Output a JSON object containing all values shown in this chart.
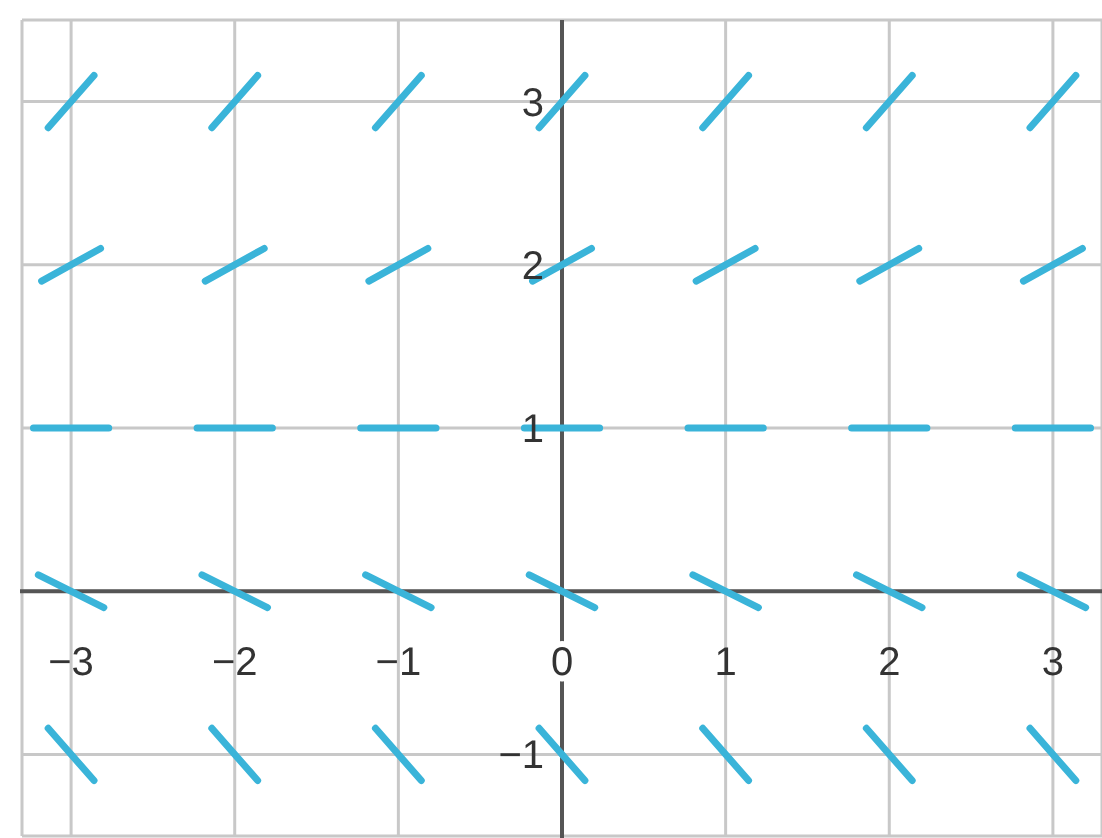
{
  "chart_data": {
    "type": "line",
    "xlim": [
      -3.3,
      3.3
    ],
    "ylim": [
      -1.5,
      3.5
    ],
    "xticks": [
      -3,
      -2,
      -1,
      0,
      1,
      2,
      3
    ],
    "yticks": [
      -1,
      {
        "value": 0,
        "label": null
      },
      1,
      2,
      3
    ],
    "grid": true,
    "marker": "none",
    "line_style": "solid",
    "series": [
      {
        "color": "#3ab4d9",
        "x": [
          -3.14,
          -2.86,
          -2.5,
          -2.14,
          -1.86,
          -1.5,
          -1.14,
          -0.86,
          -0.5,
          -0.14,
          0.14,
          0.5,
          0.86,
          1.14,
          1.5,
          1.86,
          2.14,
          2.5,
          2.86,
          3.14
        ],
        "values": [
          2.84,
          3.16,
          null,
          2.84,
          3.16,
          null,
          2.84,
          3.16,
          null,
          2.84,
          3.16,
          null,
          2.84,
          3.16,
          null,
          2.84,
          3.16,
          null,
          2.84,
          3.16
        ]
      },
      {
        "color": "#3ab4d9",
        "x": [
          -3.18,
          -2.82,
          -2.5,
          -2.18,
          -1.82,
          -1.5,
          -1.18,
          -0.82,
          -0.5,
          -0.18,
          0.18,
          0.5,
          0.82,
          1.18,
          1.5,
          1.82,
          2.18,
          2.5,
          2.82,
          3.18
        ],
        "values": [
          1.9,
          2.1,
          null,
          1.9,
          2.1,
          null,
          1.9,
          2.1,
          null,
          1.9,
          2.1,
          null,
          1.9,
          2.1,
          null,
          1.9,
          2.1,
          null,
          1.9,
          2.1
        ]
      },
      {
        "color": "#3ab4d9",
        "x": [
          -3.23,
          -2.77,
          -2.5,
          -2.23,
          -1.77,
          -1.5,
          -1.23,
          -0.77,
          -0.5,
          -0.23,
          0.23,
          0.5,
          0.77,
          1.23,
          1.5,
          1.77,
          2.23,
          2.5,
          2.77,
          3.23
        ],
        "values": [
          1,
          1,
          null,
          1,
          1,
          null,
          1,
          1,
          null,
          1,
          1,
          null,
          1,
          1,
          null,
          1,
          1,
          null,
          1,
          1
        ]
      },
      {
        "color": "#3ab4d9",
        "x": [
          -3.2,
          -2.8,
          -2.5,
          -2.2,
          -1.8,
          -1.5,
          -1.2,
          -0.8,
          -0.5,
          -0.2,
          0.2,
          0.5,
          0.8,
          1.2,
          1.5,
          1.8,
          2.2,
          2.5,
          2.8,
          3.2
        ],
        "values": [
          0.1,
          -0.1,
          null,
          0.1,
          -0.1,
          null,
          0.1,
          -0.1,
          null,
          0.1,
          -0.1,
          null,
          0.1,
          -0.1,
          null,
          0.1,
          -0.1,
          null,
          0.1,
          -0.1
        ]
      },
      {
        "color": "#3ab4d9",
        "x": [
          -3.14,
          -2.86,
          -2.5,
          -2.14,
          -1.86,
          -1.5,
          -1.14,
          -0.86,
          -0.5,
          -0.14,
          0.14,
          0.5,
          0.86,
          1.14,
          1.5,
          1.86,
          2.14,
          2.5,
          2.86,
          3.14
        ],
        "values": [
          -0.84,
          -1.16,
          null,
          -0.84,
          -1.16,
          null,
          -0.84,
          -1.16,
          null,
          -0.84,
          -1.16,
          null,
          -0.84,
          -1.16,
          null,
          -0.84,
          -1.16,
          null,
          -0.84,
          -1.16
        ]
      }
    ]
  }
}
